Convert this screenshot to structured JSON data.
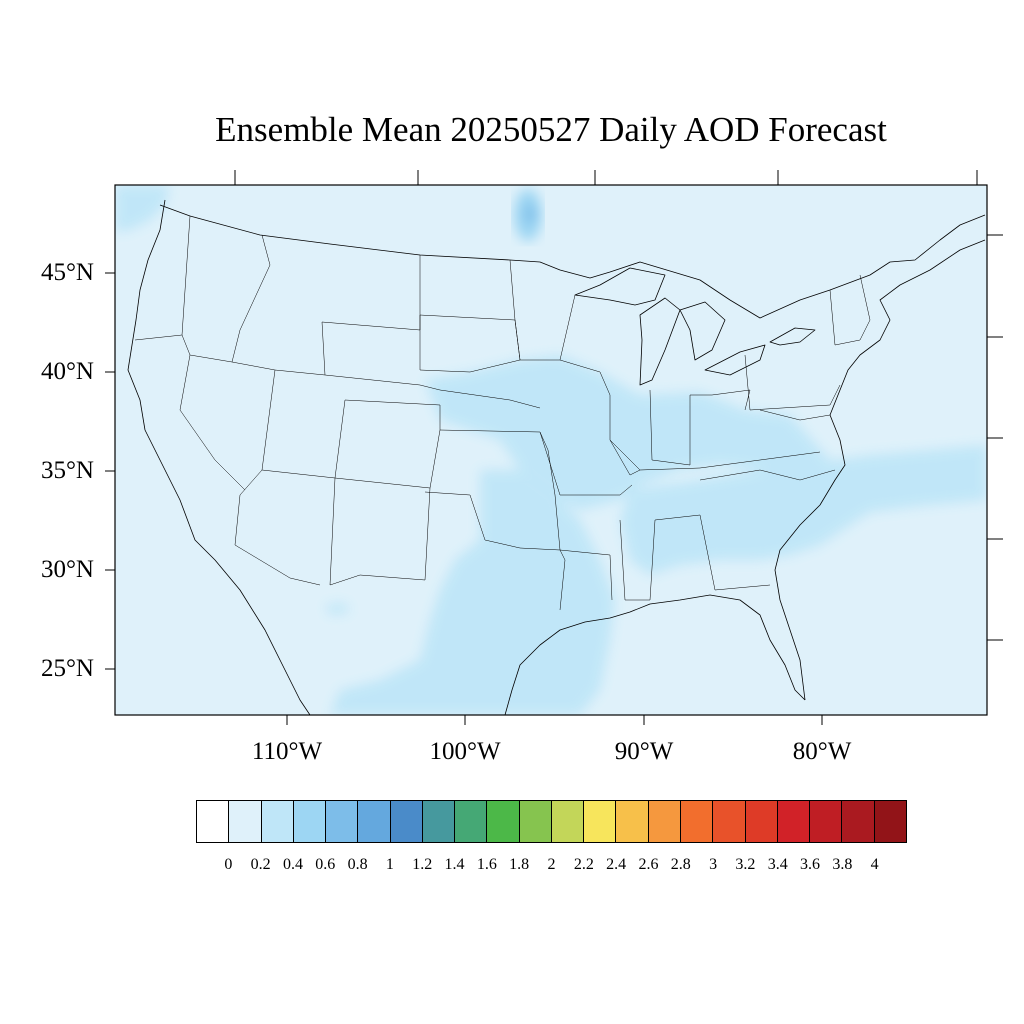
{
  "title": "Ensemble Mean 20250527 Daily AOD Forecast",
  "map": {
    "projection": "Lambert conformal (CONUS)",
    "background_color": "#dff1fa",
    "lat_labels": [
      "45°N",
      "40°N",
      "35°N",
      "30°N",
      "25°N"
    ],
    "lon_labels": [
      "110°W",
      "100°W",
      "90°W",
      "80°W"
    ],
    "features": [
      "coastline",
      "state-borders",
      "country-borders",
      "great-lakes"
    ]
  },
  "colorbar": {
    "labels": [
      "0",
      "0.2",
      "0.4",
      "0.6",
      "0.8",
      "1",
      "1.2",
      "1.4",
      "1.6",
      "1.8",
      "2",
      "2.2",
      "2.4",
      "2.6",
      "2.8",
      "3",
      "3.2",
      "3.4",
      "3.6",
      "3.8",
      "4"
    ],
    "colors": [
      "#ffffff",
      "#dff1fa",
      "#bfe6f8",
      "#9dd6f3",
      "#7dbde9",
      "#64a8de",
      "#4a8bc9",
      "#46999e",
      "#45a875",
      "#4cb848",
      "#86c44f",
      "#c3d659",
      "#f7e55c",
      "#f7c04a",
      "#f5983e",
      "#f26e2d",
      "#e8522a",
      "#de3b27",
      "#d12228",
      "#bf1e24",
      "#aa1a20",
      "#921418"
    ]
  },
  "chart_data": {
    "type": "heatmap",
    "title": "Ensemble Mean 20250527 Daily AOD Forecast",
    "variable": "AOD",
    "levels": [
      0,
      0.2,
      0.4,
      0.6,
      0.8,
      1,
      1.2,
      1.4,
      1.6,
      1.8,
      2,
      2.2,
      2.4,
      2.6,
      2.8,
      3,
      3.2,
      3.4,
      3.6,
      3.8,
      4
    ],
    "domain_background_range": [
      0.2,
      0.4
    ],
    "regions": [
      {
        "area": "Central Plains / Midwest / Mississippi Valley",
        "range": [
          0.4,
          0.6
        ]
      },
      {
        "area": "Texas / Gulf Coast",
        "range": [
          0.4,
          0.6
        ]
      },
      {
        "area": "Southeast / Atlantic coast offshore",
        "range": [
          0.4,
          0.6
        ]
      },
      {
        "area": "Northern Minnesota / Ontario",
        "range": [
          0.6,
          0.8
        ]
      },
      {
        "area": "Remainder of domain",
        "range": [
          0.2,
          0.4
        ]
      }
    ]
  }
}
